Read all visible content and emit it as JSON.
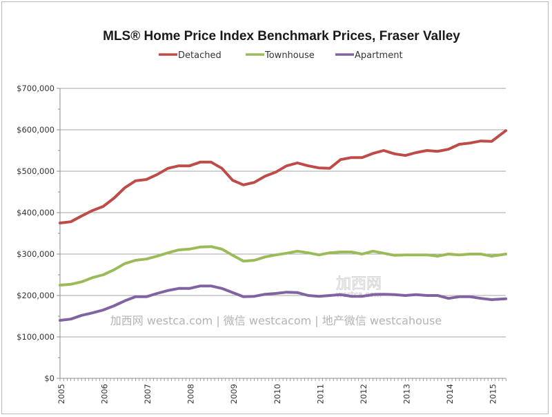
{
  "chart_data": {
    "type": "line",
    "title": "MLS® Home Price Index Benchmark Prices, Fraser Valley",
    "xlabel": "",
    "ylabel": "",
    "xlim": [
      2005,
      2015.33
    ],
    "ylim": [
      0,
      700000
    ],
    "y_ticks": [
      0,
      100000,
      200000,
      300000,
      400000,
      500000,
      600000,
      700000
    ],
    "y_tick_labels": [
      "$0",
      "$100,000",
      "$200,000",
      "$300,000",
      "$400,000",
      "$500,000",
      "$600,000",
      "$700,000"
    ],
    "x_ticks": [
      2005,
      2006,
      2007,
      2008,
      2009,
      2010,
      2011,
      2012,
      2013,
      2014,
      2015
    ],
    "x_tick_labels": [
      "2005",
      "2006",
      "2007",
      "2008",
      "2009",
      "2010",
      "2011",
      "2012",
      "2013",
      "2014",
      "2015"
    ],
    "grid": true,
    "legend_position": "top",
    "x": [
      2005.0,
      2005.25,
      2005.5,
      2005.75,
      2006.0,
      2006.25,
      2006.5,
      2006.75,
      2007.0,
      2007.25,
      2007.5,
      2007.75,
      2008.0,
      2008.25,
      2008.5,
      2008.75,
      2009.0,
      2009.25,
      2009.5,
      2009.75,
      2010.0,
      2010.25,
      2010.5,
      2010.75,
      2011.0,
      2011.25,
      2011.5,
      2011.75,
      2012.0,
      2012.25,
      2012.5,
      2012.75,
      2013.0,
      2013.25,
      2013.5,
      2013.75,
      2014.0,
      2014.25,
      2014.5,
      2014.75,
      2015.0,
      2015.33
    ],
    "series": [
      {
        "name": "Detached",
        "color": "#be4b48",
        "values": [
          375000,
          378000,
          392000,
          405000,
          415000,
          435000,
          460000,
          477000,
          480000,
          492000,
          507000,
          513000,
          513000,
          522000,
          522000,
          507000,
          478000,
          467000,
          473000,
          488000,
          498000,
          513000,
          520000,
          513000,
          508000,
          507000,
          528000,
          533000,
          533000,
          543000,
          550000,
          542000,
          538000,
          545000,
          550000,
          548000,
          553000,
          565000,
          568000,
          573000,
          572000,
          598000
        ]
      },
      {
        "name": "Townhouse",
        "color": "#9bbb59",
        "values": [
          225000,
          227000,
          233000,
          243000,
          250000,
          262000,
          277000,
          285000,
          288000,
          295000,
          303000,
          310000,
          312000,
          317000,
          318000,
          312000,
          297000,
          283000,
          285000,
          293000,
          298000,
          302000,
          307000,
          303000,
          298000,
          303000,
          305000,
          305000,
          300000,
          307000,
          302000,
          297000,
          298000,
          298000,
          298000,
          295000,
          300000,
          298000,
          300000,
          300000,
          295000,
          300000
        ]
      },
      {
        "name": "Apartment",
        "color": "#8064a2",
        "values": [
          140000,
          143000,
          152000,
          158000,
          165000,
          175000,
          187000,
          197000,
          197000,
          205000,
          212000,
          217000,
          217000,
          223000,
          223000,
          217000,
          207000,
          197000,
          198000,
          203000,
          205000,
          208000,
          207000,
          200000,
          198000,
          200000,
          202000,
          198000,
          198000,
          202000,
          203000,
          202000,
          200000,
          202000,
          200000,
          200000,
          193000,
          197000,
          197000,
          193000,
          190000,
          192000
        ]
      }
    ]
  },
  "watermark": {
    "text": "加西网 westca.com | 微信 westcacom | 地产微信 westcahouse",
    "logo_text": "加西网",
    "logo_sub": "westca.com"
  },
  "colors": {
    "grid": "#a6a6a6",
    "axis": "#8c8c8c"
  }
}
